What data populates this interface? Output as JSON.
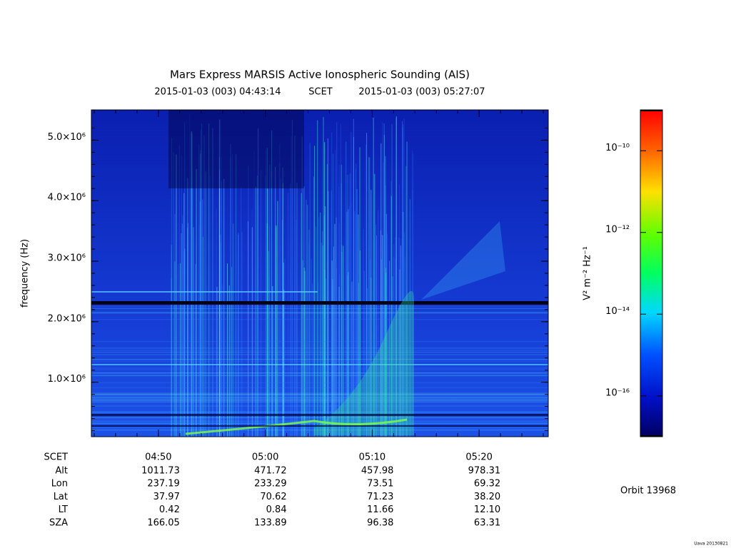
{
  "chart_data": {
    "type": "spectrogram",
    "title": "Mars Express MARSIS Active Ionospheric Sounding (AIS)",
    "start_time": "2015-01-03 (003) 04:43:14",
    "time_system": "SCET",
    "end_time": "2015-01-03 (003) 05:27:07",
    "ylabel": "frequency (Hz)",
    "ylim": [
      100000,
      5500000
    ],
    "yticks": [
      {
        "value": 1000000,
        "label": "1.0×10⁶"
      },
      {
        "value": 2000000,
        "label": "2.0×10⁶"
      },
      {
        "value": 3000000,
        "label": "3.0×10⁶"
      },
      {
        "value": 4000000,
        "label": "4.0×10⁶"
      },
      {
        "value": 5000000,
        "label": "5.0×10⁶"
      }
    ],
    "xlim": [
      "04:43:44",
      "05:26:28"
    ],
    "xticks": [
      "04:50",
      "05:00",
      "05:10",
      "05:20"
    ],
    "xtick_row_label": "SCET",
    "ephemeris": [
      {
        "name": "Alt",
        "values": [
          "1011.73",
          "471.72",
          "457.98",
          "978.31"
        ]
      },
      {
        "name": "Lon",
        "values": [
          "237.19",
          "233.29",
          "73.51",
          "69.32"
        ]
      },
      {
        "name": "Lat",
        "values": [
          "37.97",
          "70.62",
          "71.23",
          "38.20"
        ]
      },
      {
        "name": "LT",
        "values": [
          "0.42",
          "0.84",
          "11.66",
          "12.10"
        ]
      },
      {
        "name": "SZA",
        "values": [
          "166.05",
          "133.89",
          "96.38",
          "63.31"
        ]
      }
    ],
    "colorbar": {
      "label": "V² m⁻² Hz⁻¹",
      "scale": "log",
      "lim": [
        1e-17,
        1e-09
      ],
      "ticks": [
        {
          "value": 1e-10,
          "label": "10⁻¹⁰"
        },
        {
          "value": 1e-12,
          "label": "10⁻¹²"
        },
        {
          "value": 1e-14,
          "label": "10⁻¹⁴"
        },
        {
          "value": 1e-16,
          "label": "10⁻¹⁶"
        }
      ]
    },
    "orbit": "Orbit 13968",
    "credit": "Uava 20130821"
  }
}
